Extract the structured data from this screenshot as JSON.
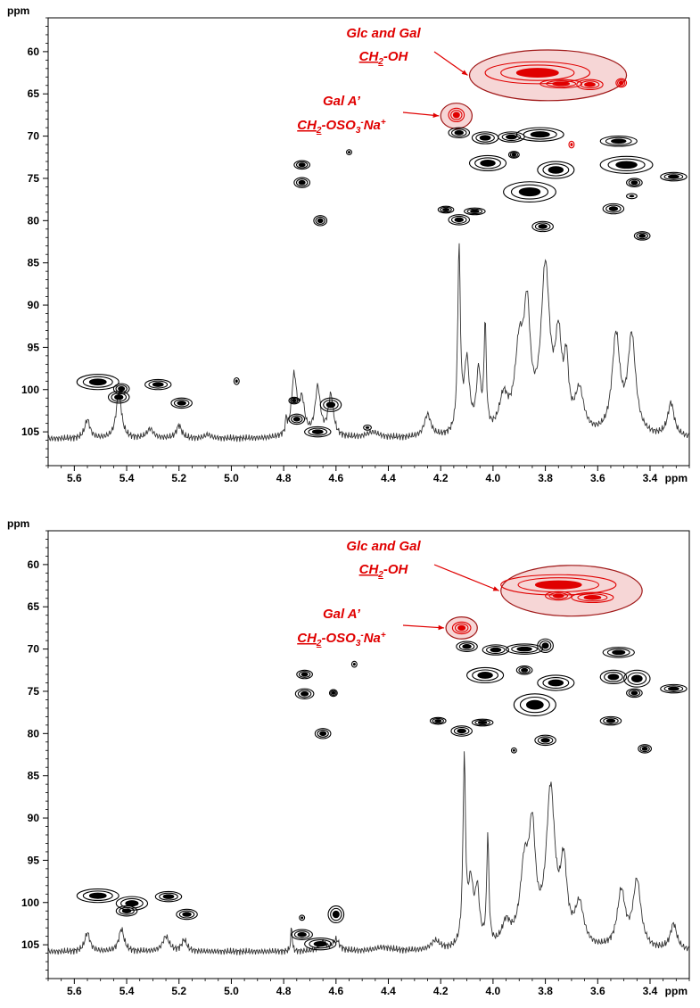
{
  "colors": {
    "contour": "#000000",
    "highlight": "#e00000",
    "highlight_fill": "#f6d6d6",
    "highlight_edge": "#a01818",
    "trace": "#333333"
  },
  "chart_data": [
    {
      "type": "heatmap",
      "title": "",
      "xlabel": "ppm",
      "ylabel": "ppm",
      "xlim": [
        5.7,
        3.25
      ],
      "ylim": [
        56,
        109
      ],
      "x_axis_reversed": true,
      "y_axis_inverted": true,
      "x_ticks": [
        "5.6",
        "5.4",
        "5.2",
        "5.0",
        "4.8",
        "4.6",
        "4.4",
        "4.2",
        "4.0",
        "3.8",
        "3.6",
        "3.4"
      ],
      "y_ticks": [
        "60",
        "65",
        "70",
        "75",
        "80",
        "85",
        "90",
        "95",
        "100",
        "105"
      ],
      "annotations": [
        {
          "id": "ch2oh",
          "line1": "Glc and Gal",
          "line2_parts": [
            "CH",
            "2",
            "-OH"
          ],
          "center": [
            3.79,
            62.8
          ],
          "radius": [
            0.3,
            3.0
          ]
        },
        {
          "id": "ch2oso3",
          "line1": "Gal A’",
          "line2_parts": [
            "CH",
            "2",
            "-OSO",
            "3",
            "-",
            "Na",
            "+"
          ],
          "center": [
            4.14,
            67.6
          ],
          "radius": [
            0.06,
            1.5
          ]
        }
      ],
      "cross_peaks": [
        {
          "x": 5.51,
          "y": 99.1,
          "w": 0.08,
          "h": 0.9
        },
        {
          "x": 5.42,
          "y": 99.9,
          "w": 0.03,
          "h": 0.6
        },
        {
          "x": 5.43,
          "y": 100.9,
          "w": 0.04,
          "h": 0.7
        },
        {
          "x": 5.28,
          "y": 99.4,
          "w": 0.05,
          "h": 0.6
        },
        {
          "x": 5.19,
          "y": 101.6,
          "w": 0.04,
          "h": 0.6
        },
        {
          "x": 4.98,
          "y": 99.0,
          "w": 0.01,
          "h": 0.4
        },
        {
          "x": 4.76,
          "y": 101.3,
          "w": 0.02,
          "h": 0.4
        },
        {
          "x": 4.75,
          "y": 103.5,
          "w": 0.03,
          "h": 0.6
        },
        {
          "x": 4.67,
          "y": 105.0,
          "w": 0.05,
          "h": 0.6
        },
        {
          "x": 4.62,
          "y": 101.8,
          "w": 0.04,
          "h": 0.8
        },
        {
          "x": 4.48,
          "y": 104.5,
          "w": 0.015,
          "h": 0.3
        },
        {
          "x": 4.73,
          "y": 73.4,
          "w": 0.03,
          "h": 0.5
        },
        {
          "x": 4.73,
          "y": 75.5,
          "w": 0.03,
          "h": 0.6
        },
        {
          "x": 4.66,
          "y": 80.0,
          "w": 0.025,
          "h": 0.6
        },
        {
          "x": 4.55,
          "y": 71.9,
          "w": 0.01,
          "h": 0.3
        },
        {
          "x": 4.13,
          "y": 69.6,
          "w": 0.04,
          "h": 0.6
        },
        {
          "x": 4.03,
          "y": 70.2,
          "w": 0.05,
          "h": 0.7
        },
        {
          "x": 3.93,
          "y": 70.1,
          "w": 0.05,
          "h": 0.6
        },
        {
          "x": 3.82,
          "y": 69.8,
          "w": 0.09,
          "h": 0.8
        },
        {
          "x": 4.02,
          "y": 73.2,
          "w": 0.07,
          "h": 0.9
        },
        {
          "x": 3.92,
          "y": 72.2,
          "w": 0.02,
          "h": 0.4
        },
        {
          "x": 3.76,
          "y": 74.0,
          "w": 0.07,
          "h": 1.0
        },
        {
          "x": 3.86,
          "y": 76.6,
          "w": 0.1,
          "h": 1.2
        },
        {
          "x": 4.18,
          "y": 78.7,
          "w": 0.03,
          "h": 0.4
        },
        {
          "x": 4.13,
          "y": 79.9,
          "w": 0.04,
          "h": 0.6
        },
        {
          "x": 4.07,
          "y": 78.9,
          "w": 0.04,
          "h": 0.4
        },
        {
          "x": 3.81,
          "y": 80.7,
          "w": 0.04,
          "h": 0.6
        },
        {
          "x": 3.52,
          "y": 70.6,
          "w": 0.07,
          "h": 0.6
        },
        {
          "x": 3.49,
          "y": 73.4,
          "w": 0.1,
          "h": 1.0
        },
        {
          "x": 3.46,
          "y": 75.5,
          "w": 0.03,
          "h": 0.5
        },
        {
          "x": 3.31,
          "y": 74.8,
          "w": 0.05,
          "h": 0.5
        },
        {
          "x": 3.54,
          "y": 78.6,
          "w": 0.04,
          "h": 0.6
        },
        {
          "x": 3.43,
          "y": 81.8,
          "w": 0.03,
          "h": 0.5
        },
        {
          "x": 3.47,
          "y": 77.1,
          "w": 0.02,
          "h": 0.3
        }
      ],
      "highlight_peaks": [
        {
          "x": 3.83,
          "y": 62.5,
          "w": 0.2,
          "h": 1.3
        },
        {
          "x": 3.74,
          "y": 63.8,
          "w": 0.08,
          "h": 0.5
        },
        {
          "x": 3.63,
          "y": 63.9,
          "w": 0.05,
          "h": 0.6
        },
        {
          "x": 3.51,
          "y": 63.7,
          "w": 0.02,
          "h": 0.5
        },
        {
          "x": 4.14,
          "y": 67.5,
          "w": 0.03,
          "h": 0.8
        },
        {
          "x": 3.7,
          "y": 71.0,
          "w": 0.01,
          "h": 0.4
        }
      ],
      "projection_peaks": [
        {
          "x": 5.55,
          "height": 0.1,
          "width": 0.012
        },
        {
          "x": 5.43,
          "height": 0.25,
          "width": 0.012
        },
        {
          "x": 5.31,
          "height": 0.05,
          "width": 0.015
        },
        {
          "x": 5.2,
          "height": 0.07,
          "width": 0.012
        },
        {
          "x": 5.09,
          "height": 0.02,
          "width": 0.015
        },
        {
          "x": 4.79,
          "height": 0.08,
          "width": 0.003
        },
        {
          "x": 4.76,
          "height": 0.32,
          "width": 0.012
        },
        {
          "x": 4.73,
          "height": 0.18,
          "width": 0.012
        },
        {
          "x": 4.67,
          "height": 0.26,
          "width": 0.012
        },
        {
          "x": 4.62,
          "height": 0.22,
          "width": 0.012
        },
        {
          "x": 4.46,
          "height": 0.03,
          "width": 0.03
        },
        {
          "x": 4.25,
          "height": 0.12,
          "width": 0.015
        },
        {
          "x": 4.13,
          "height": 0.98,
          "width": 0.006
        },
        {
          "x": 4.1,
          "height": 0.38,
          "width": 0.012
        },
        {
          "x": 4.055,
          "height": 0.32,
          "width": 0.01
        },
        {
          "x": 4.03,
          "height": 0.56,
          "width": 0.005
        },
        {
          "x": 3.96,
          "height": 0.18,
          "width": 0.02
        },
        {
          "x": 3.9,
          "height": 0.42,
          "width": 0.02
        },
        {
          "x": 3.87,
          "height": 0.58,
          "width": 0.015
        },
        {
          "x": 3.8,
          "height": 0.86,
          "width": 0.02
        },
        {
          "x": 3.75,
          "height": 0.45,
          "width": 0.015
        },
        {
          "x": 3.72,
          "height": 0.32,
          "width": 0.01
        },
        {
          "x": 3.67,
          "height": 0.22,
          "width": 0.02
        },
        {
          "x": 3.53,
          "height": 0.52,
          "width": 0.018
        },
        {
          "x": 3.47,
          "height": 0.52,
          "width": 0.018
        },
        {
          "x": 3.32,
          "height": 0.18,
          "width": 0.015
        }
      ]
    },
    {
      "type": "heatmap",
      "title": "",
      "xlabel": "ppm",
      "ylabel": "ppm",
      "xlim": [
        5.7,
        3.25
      ],
      "ylim": [
        56,
        109
      ],
      "x_axis_reversed": true,
      "y_axis_inverted": true,
      "x_ticks": [
        "5.6",
        "5.4",
        "5.2",
        "5.0",
        "4.8",
        "4.6",
        "4.4",
        "4.2",
        "4.0",
        "3.8",
        "3.6",
        "3.4"
      ],
      "y_ticks": [
        "60",
        "65",
        "70",
        "75",
        "80",
        "85",
        "90",
        "95",
        "100",
        "105"
      ],
      "annotations": [
        {
          "id": "ch2oh",
          "line1": "Glc and Gal",
          "line2_parts": [
            "CH",
            "2",
            "-OH"
          ],
          "center": [
            3.7,
            63.1
          ],
          "radius": [
            0.27,
            3.0
          ]
        },
        {
          "id": "ch2oso3",
          "line1": "Gal A’",
          "line2_parts": [
            "CH",
            "2",
            "-OSO",
            "3",
            "-",
            "Na",
            "+"
          ],
          "center": [
            4.12,
            67.5
          ],
          "radius": [
            0.06,
            1.3
          ]
        }
      ],
      "cross_peaks": [
        {
          "x": 5.51,
          "y": 99.2,
          "w": 0.08,
          "h": 0.8
        },
        {
          "x": 5.38,
          "y": 100.1,
          "w": 0.06,
          "h": 0.8
        },
        {
          "x": 5.4,
          "y": 101.0,
          "w": 0.04,
          "h": 0.6
        },
        {
          "x": 5.24,
          "y": 99.3,
          "w": 0.05,
          "h": 0.6
        },
        {
          "x": 5.17,
          "y": 101.4,
          "w": 0.04,
          "h": 0.6
        },
        {
          "x": 4.73,
          "y": 103.8,
          "w": 0.04,
          "h": 0.6
        },
        {
          "x": 4.66,
          "y": 104.9,
          "w": 0.06,
          "h": 0.7
        },
        {
          "x": 4.6,
          "y": 101.4,
          "w": 0.03,
          "h": 1.0
        },
        {
          "x": 4.73,
          "y": 101.8,
          "w": 0.01,
          "h": 0.3
        },
        {
          "x": 4.72,
          "y": 73.0,
          "w": 0.03,
          "h": 0.5
        },
        {
          "x": 4.72,
          "y": 75.3,
          "w": 0.035,
          "h": 0.6
        },
        {
          "x": 4.61,
          "y": 75.2,
          "w": 0.015,
          "h": 0.4
        },
        {
          "x": 4.65,
          "y": 80.0,
          "w": 0.03,
          "h": 0.6
        },
        {
          "x": 4.53,
          "y": 71.8,
          "w": 0.01,
          "h": 0.35
        },
        {
          "x": 4.1,
          "y": 69.7,
          "w": 0.04,
          "h": 0.6
        },
        {
          "x": 3.99,
          "y": 70.1,
          "w": 0.05,
          "h": 0.6
        },
        {
          "x": 3.88,
          "y": 70.0,
          "w": 0.07,
          "h": 0.6
        },
        {
          "x": 3.8,
          "y": 69.6,
          "w": 0.03,
          "h": 0.8
        },
        {
          "x": 4.03,
          "y": 73.1,
          "w": 0.07,
          "h": 0.9
        },
        {
          "x": 3.88,
          "y": 72.5,
          "w": 0.03,
          "h": 0.5
        },
        {
          "x": 3.76,
          "y": 74.0,
          "w": 0.07,
          "h": 0.9
        },
        {
          "x": 3.84,
          "y": 76.6,
          "w": 0.08,
          "h": 1.3
        },
        {
          "x": 4.21,
          "y": 78.5,
          "w": 0.03,
          "h": 0.4
        },
        {
          "x": 4.12,
          "y": 79.7,
          "w": 0.04,
          "h": 0.6
        },
        {
          "x": 4.04,
          "y": 78.7,
          "w": 0.04,
          "h": 0.4
        },
        {
          "x": 3.8,
          "y": 80.8,
          "w": 0.04,
          "h": 0.6
        },
        {
          "x": 3.52,
          "y": 70.4,
          "w": 0.06,
          "h": 0.6
        },
        {
          "x": 3.54,
          "y": 73.3,
          "w": 0.05,
          "h": 0.8
        },
        {
          "x": 3.45,
          "y": 73.5,
          "w": 0.05,
          "h": 1.0
        },
        {
          "x": 3.46,
          "y": 75.2,
          "w": 0.03,
          "h": 0.5
        },
        {
          "x": 3.31,
          "y": 74.7,
          "w": 0.05,
          "h": 0.5
        },
        {
          "x": 3.55,
          "y": 78.5,
          "w": 0.04,
          "h": 0.5
        },
        {
          "x": 3.42,
          "y": 81.8,
          "w": 0.025,
          "h": 0.5
        },
        {
          "x": 3.92,
          "y": 82.0,
          "w": 0.01,
          "h": 0.3
        }
      ],
      "highlight_peaks": [
        {
          "x": 3.75,
          "y": 62.4,
          "w": 0.22,
          "h": 1.2
        },
        {
          "x": 3.62,
          "y": 63.9,
          "w": 0.08,
          "h": 0.6
        },
        {
          "x": 3.75,
          "y": 63.7,
          "w": 0.05,
          "h": 0.5
        },
        {
          "x": 4.12,
          "y": 67.5,
          "w": 0.035,
          "h": 0.7
        }
      ],
      "projection_peaks": [
        {
          "x": 5.55,
          "height": 0.1,
          "width": 0.012
        },
        {
          "x": 5.42,
          "height": 0.12,
          "width": 0.012
        },
        {
          "x": 5.25,
          "height": 0.08,
          "width": 0.015
        },
        {
          "x": 5.18,
          "height": 0.06,
          "width": 0.012
        },
        {
          "x": 4.77,
          "height": 0.14,
          "width": 0.003
        },
        {
          "x": 4.65,
          "height": 0.05,
          "width": 0.015
        },
        {
          "x": 4.6,
          "height": 0.06,
          "width": 0.015
        },
        {
          "x": 4.42,
          "height": 0.02,
          "width": 0.04
        },
        {
          "x": 4.22,
          "height": 0.05,
          "width": 0.02
        },
        {
          "x": 4.11,
          "height": 0.98,
          "width": 0.006
        },
        {
          "x": 4.085,
          "height": 0.32,
          "width": 0.012
        },
        {
          "x": 4.06,
          "height": 0.28,
          "width": 0.01
        },
        {
          "x": 4.02,
          "height": 0.58,
          "width": 0.005
        },
        {
          "x": 3.95,
          "height": 0.12,
          "width": 0.02
        },
        {
          "x": 3.88,
          "height": 0.4,
          "width": 0.02
        },
        {
          "x": 3.85,
          "height": 0.55,
          "width": 0.015
        },
        {
          "x": 3.78,
          "height": 0.82,
          "width": 0.02
        },
        {
          "x": 3.73,
          "height": 0.4,
          "width": 0.015
        },
        {
          "x": 3.67,
          "height": 0.22,
          "width": 0.02
        },
        {
          "x": 3.51,
          "height": 0.3,
          "width": 0.018
        },
        {
          "x": 3.45,
          "height": 0.36,
          "width": 0.018
        },
        {
          "x": 3.31,
          "height": 0.14,
          "width": 0.015
        }
      ]
    }
  ]
}
